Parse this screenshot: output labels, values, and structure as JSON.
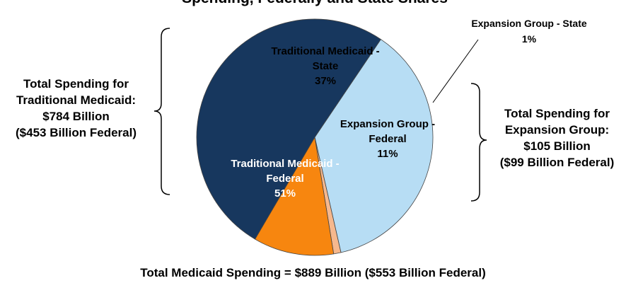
{
  "chart_data": {
    "type": "pie",
    "title": "Spending, Federally and State Shares",
    "slices": [
      {
        "label_lines": [
          "Traditional Medicaid -",
          "State"
        ],
        "value": 37,
        "value_label": "37%",
        "color": "#B7DDF4"
      },
      {
        "label_lines": [
          "Expansion Group - State"
        ],
        "value": 1,
        "value_label": "1%",
        "color": "#F6B88D"
      },
      {
        "label_lines": [
          "Expansion Group -",
          "Federal"
        ],
        "value": 11,
        "value_label": "11%",
        "color": "#F7860F"
      },
      {
        "label_lines": [
          "Traditional Medicaid -",
          "Federal"
        ],
        "value": 51,
        "value_label": "51%",
        "color": "#17375E"
      }
    ],
    "left_annotation": [
      "Total Spending for",
      "Traditional Medicaid:",
      "$784 Billion",
      "($453 Billion Federal)"
    ],
    "right_annotation": [
      "Total Spending for",
      "Expansion Group:",
      "$105 Billion",
      "($99 Billion Federal)"
    ],
    "footer": "Total Medicaid Spending = $889 Billion ($553 Billion Federal)"
  }
}
